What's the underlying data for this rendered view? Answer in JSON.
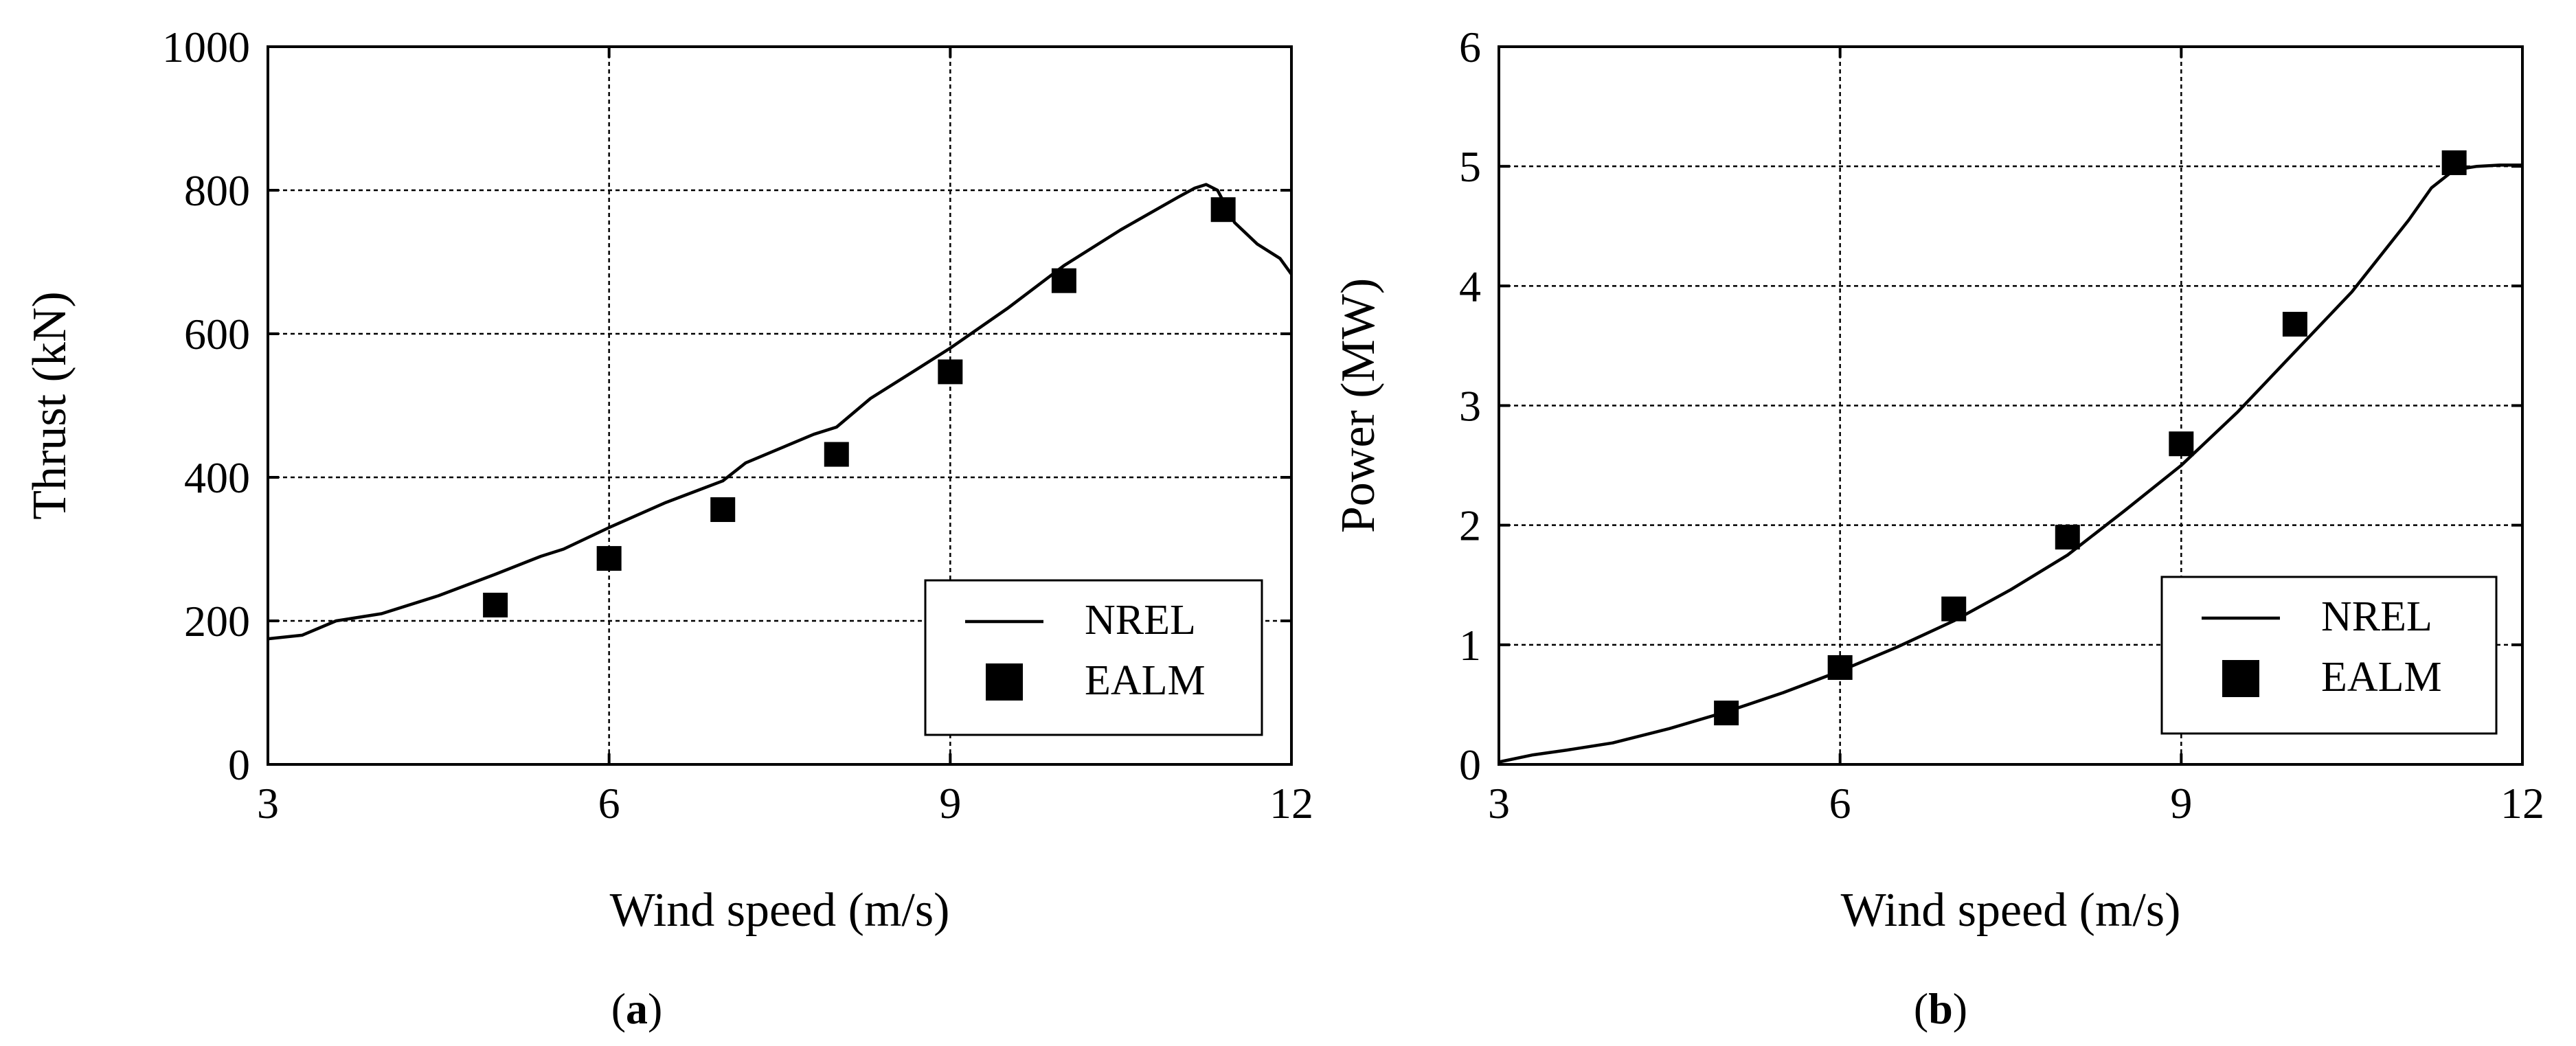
{
  "chart_data": [
    {
      "id": "a",
      "type": "line",
      "caption_letter": "a",
      "xlabel": "Wind speed (m/s)",
      "ylabel": "Thrust (kN)",
      "xlim": [
        3,
        12
      ],
      "ylim": [
        0,
        1000
      ],
      "xticks": [
        3,
        6,
        9,
        12
      ],
      "yticks": [
        0,
        200,
        400,
        600,
        800,
        1000
      ],
      "grid": true,
      "legend_position": "bottom-right",
      "series": [
        {
          "name": "NREL",
          "style": "line",
          "x": [
            3.0,
            3.3,
            3.6,
            4.0,
            4.5,
            5.0,
            5.4,
            5.6,
            6.0,
            6.5,
            7.0,
            7.2,
            7.5,
            7.8,
            8.0,
            8.3,
            8.7,
            9.0,
            9.5,
            10.0,
            10.5,
            11.0,
            11.15,
            11.25,
            11.35,
            11.5,
            11.7,
            11.9,
            12.0
          ],
          "y": [
            175,
            180,
            200,
            210,
            235,
            265,
            290,
            300,
            330,
            365,
            395,
            420,
            440,
            460,
            470,
            510,
            550,
            580,
            635,
            695,
            745,
            790,
            803,
            808,
            800,
            755,
            725,
            705,
            683
          ]
        },
        {
          "name": "EALM",
          "style": "markers",
          "x": [
            5,
            6,
            7,
            8,
            9,
            10,
            11.4
          ],
          "y": [
            222,
            287,
            355,
            432,
            547,
            674,
            773
          ]
        }
      ]
    },
    {
      "id": "b",
      "type": "line",
      "caption_letter": "b",
      "xlabel": "Wind speed (m/s)",
      "ylabel": "Power (MW)",
      "xlim": [
        3,
        12
      ],
      "ylim": [
        0,
        6
      ],
      "xticks": [
        3,
        6,
        9,
        12
      ],
      "yticks": [
        0,
        1,
        2,
        3,
        4,
        5,
        6
      ],
      "grid": true,
      "legend_position": "bottom-right",
      "series": [
        {
          "name": "NREL",
          "style": "line",
          "x": [
            3.0,
            3.3,
            3.6,
            4.0,
            4.5,
            5.0,
            5.5,
            6.0,
            6.5,
            7.0,
            7.5,
            8.0,
            8.5,
            9.0,
            9.5,
            10.0,
            10.5,
            11.0,
            11.2,
            11.4,
            11.6,
            11.8,
            12.0
          ],
          "y": [
            0.02,
            0.08,
            0.12,
            0.18,
            0.3,
            0.44,
            0.6,
            0.78,
            0.98,
            1.2,
            1.46,
            1.75,
            2.12,
            2.5,
            2.95,
            3.45,
            3.95,
            4.55,
            4.82,
            4.97,
            5.0,
            5.01,
            5.01
          ]
        },
        {
          "name": "EALM",
          "style": "markers",
          "x": [
            5,
            6,
            7,
            8,
            9,
            10,
            11.4
          ],
          "y": [
            0.43,
            0.81,
            1.3,
            1.9,
            2.68,
            3.68,
            5.03
          ]
        }
      ]
    }
  ]
}
